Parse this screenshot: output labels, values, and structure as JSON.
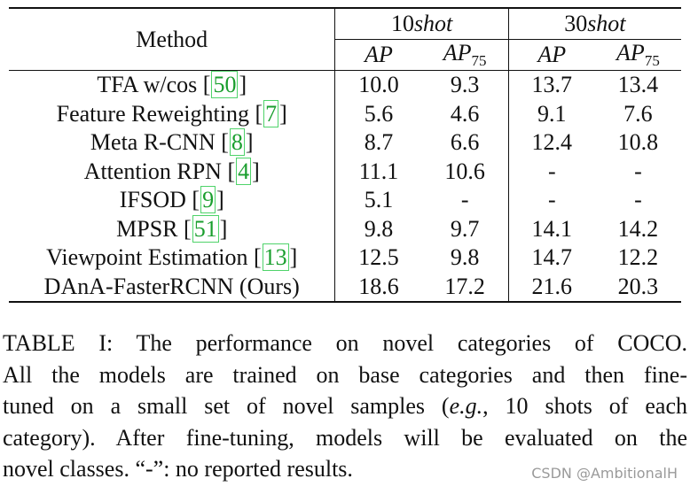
{
  "table": {
    "header": {
      "method": "Method",
      "group1": {
        "num": "10",
        "word": "shot"
      },
      "group2": {
        "num": "30",
        "word": "shot"
      },
      "ap": "AP",
      "ap75_main": "AP",
      "ap75_sub": "75"
    },
    "rows": [
      {
        "name": "TFA w/cos ",
        "ref": "50",
        "v1": "10.0",
        "v2": "9.3",
        "v3": "13.7",
        "v4": "13.4"
      },
      {
        "name": "Feature Reweighting ",
        "ref": "7",
        "v1": "5.6",
        "v2": "4.6",
        "v3": "9.1",
        "v4": "7.6"
      },
      {
        "name": "Meta R-CNN ",
        "ref": "8",
        "v1": "8.7",
        "v2": "6.6",
        "v3": "12.4",
        "v4": "10.8"
      },
      {
        "name": "Attention RPN ",
        "ref": "4",
        "v1": "11.1",
        "v2": "10.6",
        "v3": "-",
        "v4": "-"
      },
      {
        "name": "IFSOD ",
        "ref": "9",
        "v1": "5.1",
        "v2": "-",
        "v3": "-",
        "v4": "-"
      },
      {
        "name": "MPSR ",
        "ref": "51",
        "v1": "9.8",
        "v2": "9.7",
        "v3": "14.1",
        "v4": "14.2"
      },
      {
        "name": "Viewpoint Estimation ",
        "ref": "13",
        "v1": "12.5",
        "v2": "9.8",
        "v3": "14.7",
        "v4": "12.2"
      }
    ],
    "ours": {
      "name": "DAnA-FasterRCNN (Ours)",
      "v1": "18.6",
      "v2": "17.2",
      "v3": "21.6",
      "v4": "20.3"
    }
  },
  "caption": {
    "line1": "TABLE I: The performance on novel categories of COCO.",
    "line2": "All the models are trained on base categories and then fine-",
    "line3_pre": "tuned on a small set of novel samples (",
    "line3_eg": "e.g.",
    "line3_post": ", 10 shots of each",
    "line4": "category). After fine-tuning, models will be evaluated on the",
    "line5": "novel classes. “-”: no reported results."
  },
  "watermark": "CSDN @AmbitionalH"
}
